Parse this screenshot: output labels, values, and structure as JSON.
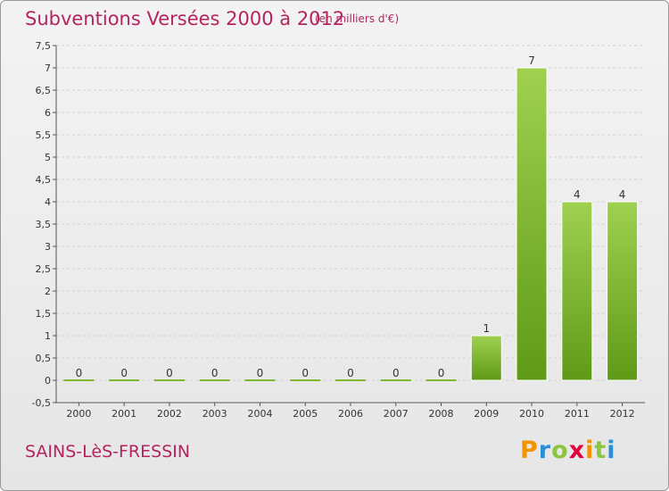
{
  "chart_data": {
    "type": "bar",
    "title": "Subventions Versées 2000 à 2012",
    "subtitle": "(en milliers d'€)",
    "categories": [
      "2000",
      "2001",
      "2002",
      "2003",
      "2004",
      "2005",
      "2006",
      "2007",
      "2008",
      "2009",
      "2010",
      "2011",
      "2012"
    ],
    "values": [
      0,
      0,
      0,
      0,
      0,
      0,
      0,
      0,
      0,
      1,
      7,
      4,
      4
    ],
    "data_labels": [
      "0",
      "0",
      "0",
      "0",
      "0",
      "0",
      "0",
      "0",
      "0",
      "1",
      "7",
      "4",
      "4"
    ],
    "ylim": [
      -0.5,
      7.5
    ],
    "yticks": [
      "-0,5",
      "0",
      "0,5",
      "1",
      "1,5",
      "2",
      "2,5",
      "3",
      "3,5",
      "4",
      "4,5",
      "5",
      "5,5",
      "6",
      "6,5",
      "7",
      "7,5"
    ],
    "grid": true,
    "bar_color": "#7cb832"
  },
  "commune": "SAINS-LèS-FRESSIN",
  "logo": {
    "letters": [
      "P",
      "r",
      "o",
      "x",
      "i",
      "t",
      "i"
    ],
    "colors": [
      "#f29400",
      "#2c8fd6",
      "#8cc63f",
      "#e4003a",
      "#f29400",
      "#8cc63f",
      "#2c8fd6"
    ]
  }
}
